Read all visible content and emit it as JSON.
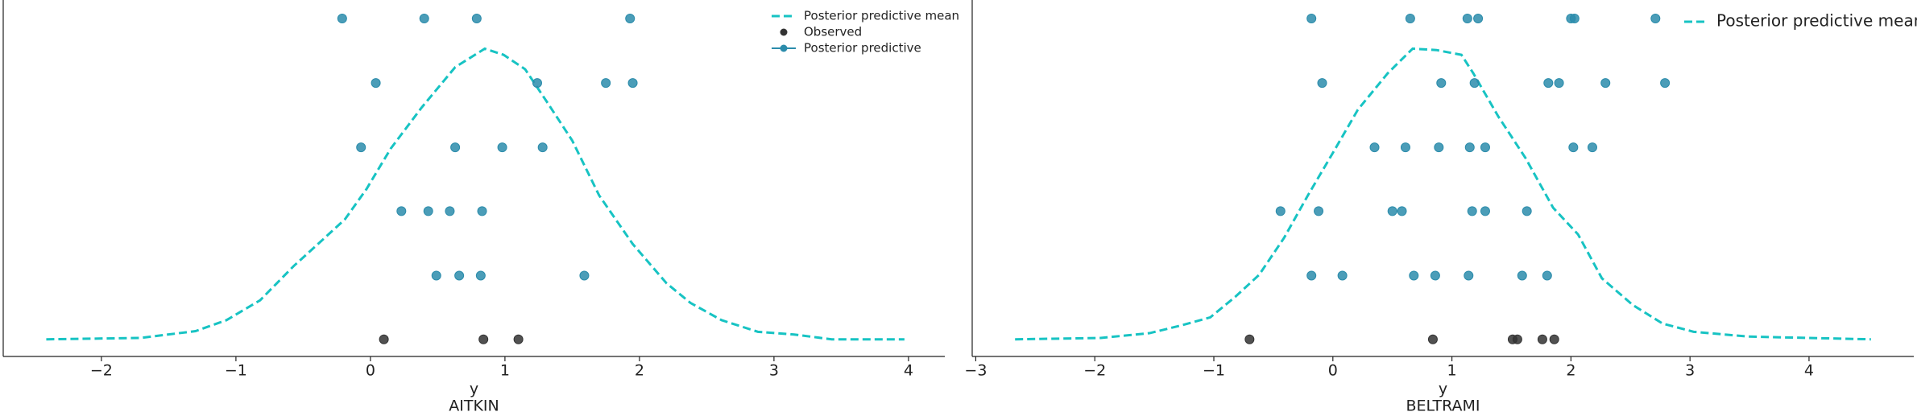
{
  "chart_data": [
    {
      "type": "scatter",
      "xlabel": "y",
      "label": "AITKIN",
      "xlim": [
        -2.73,
        4.27
      ],
      "ylim": [
        -0.025,
        0.495
      ],
      "xticks": [
        {
          "value": -2,
          "label": "−2"
        },
        {
          "value": -1,
          "label": "−1"
        },
        0,
        1,
        2,
        3,
        4
      ],
      "series": [
        {
          "name": "Posterior predictive mean",
          "kind": "line",
          "color": "#17c3c3",
          "x": [
            -2.41,
            -1.71,
            -1.3,
            -1.07,
            -0.82,
            -0.57,
            -0.39,
            -0.19,
            -0.03,
            0.15,
            0.38,
            0.63,
            0.85,
            0.99,
            1.15,
            1.32,
            1.5,
            1.7,
            1.95,
            2.2,
            2.38,
            2.61,
            2.88,
            3.15,
            3.43,
            3.97
          ],
          "values": [
            0,
            0.002,
            0.012,
            0.028,
            0.057,
            0.107,
            0.139,
            0.175,
            0.219,
            0.278,
            0.338,
            0.397,
            0.424,
            0.415,
            0.394,
            0.344,
            0.29,
            0.21,
            0.139,
            0.082,
            0.053,
            0.028,
            0.011,
            0.007,
            0,
            0
          ]
        },
        {
          "name": "Observed",
          "kind": "points",
          "color": "#333333",
          "x": [
            0.1,
            0.84,
            1.1
          ],
          "values": [
            0,
            0,
            0
          ]
        },
        {
          "name": "Posterior predictive",
          "kind": "points",
          "color": "#2b8cab",
          "x": [
            -0.21,
            0.4,
            0.79,
            1.93,
            0.04,
            1.24,
            1.75,
            1.95,
            -0.07,
            0.63,
            0.98,
            1.28,
            0.23,
            0.43,
            0.59,
            0.83,
            0.49,
            0.66,
            0.82,
            1.59
          ],
          "values": [
            0.468,
            0.468,
            0.468,
            0.468,
            0.374,
            0.374,
            0.374,
            0.374,
            0.28,
            0.28,
            0.28,
            0.28,
            0.187,
            0.187,
            0.187,
            0.187,
            0.093,
            0.093,
            0.093,
            0.093
          ]
        }
      ]
    },
    {
      "type": "scatter",
      "xlabel": "y",
      "label": "BELTRAMI",
      "xlim": [
        -3.03,
        4.88
      ],
      "ylim": [
        -0.025,
        0.495
      ],
      "xticks": [
        {
          "value": -3,
          "label": "−3"
        },
        {
          "value": -2,
          "label": "−2"
        },
        {
          "value": -1,
          "label": "−1"
        },
        0,
        1,
        2,
        3,
        4
      ],
      "series": [
        {
          "name": "Posterior predictive mean",
          "kind": "line",
          "color": "#17c3c3",
          "x": [
            -2.67,
            -1.95,
            -1.54,
            -1.28,
            -1.03,
            -0.82,
            -0.62,
            -0.41,
            -0.21,
            0,
            0.21,
            0.46,
            0.67,
            0.87,
            1.08,
            1.18,
            1.39,
            1.62,
            1.85,
            2.06,
            2.26,
            2.52,
            2.77,
            3.03,
            3.49,
            4.52
          ],
          "values": [
            0,
            0.002,
            0.009,
            0.02,
            0.032,
            0.062,
            0.094,
            0.148,
            0.21,
            0.272,
            0.335,
            0.388,
            0.424,
            0.422,
            0.415,
            0.388,
            0.325,
            0.264,
            0.192,
            0.153,
            0.089,
            0.05,
            0.023,
            0.011,
            0.004,
            0
          ]
        },
        {
          "kind": "points",
          "color": "#333333",
          "x": [
            -0.7,
            0.84,
            1.51,
            1.55,
            1.76,
            1.86
          ],
          "values": [
            0,
            0,
            0,
            0,
            0,
            0
          ]
        },
        {
          "kind": "points",
          "color": "#2b8cab",
          "x": [
            -0.18,
            0.65,
            1.13,
            1.22,
            2.0,
            2.03,
            2.71,
            -0.09,
            0.91,
            1.19,
            1.81,
            1.9,
            2.29,
            2.79,
            0.35,
            0.61,
            0.89,
            1.15,
            1.28,
            2.02,
            2.18,
            -0.44,
            -0.12,
            0.5,
            0.58,
            1.17,
            1.28,
            1.63,
            -0.18,
            0.08,
            0.68,
            0.86,
            1.14,
            1.59,
            1.8
          ],
          "values": [
            0.468,
            0.468,
            0.468,
            0.468,
            0.468,
            0.468,
            0.468,
            0.374,
            0.374,
            0.374,
            0.374,
            0.374,
            0.374,
            0.374,
            0.28,
            0.28,
            0.28,
            0.28,
            0.28,
            0.28,
            0.28,
            0.187,
            0.187,
            0.187,
            0.187,
            0.187,
            0.187,
            0.187,
            0.093,
            0.093,
            0.093,
            0.093,
            0.093,
            0.093,
            0.093
          ]
        }
      ]
    }
  ]
}
